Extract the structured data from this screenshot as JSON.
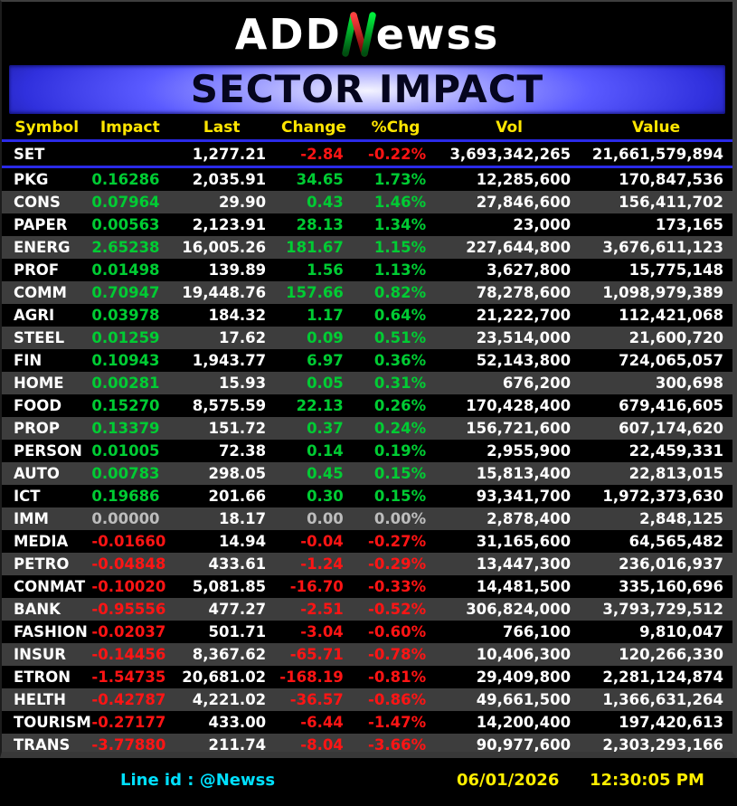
{
  "logo": {
    "text_left": "ADD",
    "text_right": "ewss",
    "n_icon": "green-red-letter-n"
  },
  "banner": {
    "title": "SECTOR IMPACT"
  },
  "table": {
    "columns": [
      "Symbol",
      "Impact",
      "Last",
      "Change",
      "%Chg",
      "Vol",
      "Value"
    ],
    "index_row": {
      "symbol": "SET",
      "impact": "",
      "last": "1,277.21",
      "change": "-2.84",
      "pct": "-0.22%",
      "vol": "3,693,342,265",
      "value": "21,661,579,894",
      "trend": "down"
    },
    "rows": [
      {
        "symbol": "PKG",
        "impact": "0.16286",
        "last": "2,035.91",
        "change": "34.65",
        "pct": "1.73%",
        "vol": "12,285,600",
        "value": "170,847,536",
        "trend": "up"
      },
      {
        "symbol": "CONS",
        "impact": "0.07964",
        "last": "29.90",
        "change": "0.43",
        "pct": "1.46%",
        "vol": "27,846,600",
        "value": "156,411,702",
        "trend": "up"
      },
      {
        "symbol": "PAPER",
        "impact": "0.00563",
        "last": "2,123.91",
        "change": "28.13",
        "pct": "1.34%",
        "vol": "23,000",
        "value": "173,165",
        "trend": "up"
      },
      {
        "symbol": "ENERG",
        "impact": "2.65238",
        "last": "16,005.26",
        "change": "181.67",
        "pct": "1.15%",
        "vol": "227,644,800",
        "value": "3,676,611,123",
        "trend": "up"
      },
      {
        "symbol": "PROF",
        "impact": "0.01498",
        "last": "139.89",
        "change": "1.56",
        "pct": "1.13%",
        "vol": "3,627,800",
        "value": "15,775,148",
        "trend": "up"
      },
      {
        "symbol": "COMM",
        "impact": "0.70947",
        "last": "19,448.76",
        "change": "157.66",
        "pct": "0.82%",
        "vol": "78,278,600",
        "value": "1,098,979,389",
        "trend": "up"
      },
      {
        "symbol": "AGRI",
        "impact": "0.03978",
        "last": "184.32",
        "change": "1.17",
        "pct": "0.64%",
        "vol": "21,222,700",
        "value": "112,421,068",
        "trend": "up"
      },
      {
        "symbol": "STEEL",
        "impact": "0.01259",
        "last": "17.62",
        "change": "0.09",
        "pct": "0.51%",
        "vol": "23,514,000",
        "value": "21,600,720",
        "trend": "up"
      },
      {
        "symbol": "FIN",
        "impact": "0.10943",
        "last": "1,943.77",
        "change": "6.97",
        "pct": "0.36%",
        "vol": "52,143,800",
        "value": "724,065,057",
        "trend": "up"
      },
      {
        "symbol": "HOME",
        "impact": "0.00281",
        "last": "15.93",
        "change": "0.05",
        "pct": "0.31%",
        "vol": "676,200",
        "value": "300,698",
        "trend": "up"
      },
      {
        "symbol": "FOOD",
        "impact": "0.15270",
        "last": "8,575.59",
        "change": "22.13",
        "pct": "0.26%",
        "vol": "170,428,400",
        "value": "679,416,605",
        "trend": "up"
      },
      {
        "symbol": "PROP",
        "impact": "0.13379",
        "last": "151.72",
        "change": "0.37",
        "pct": "0.24%",
        "vol": "156,721,600",
        "value": "607,174,620",
        "trend": "up"
      },
      {
        "symbol": "PERSON",
        "impact": "0.01005",
        "last": "72.38",
        "change": "0.14",
        "pct": "0.19%",
        "vol": "2,955,900",
        "value": "22,459,331",
        "trend": "up"
      },
      {
        "symbol": "AUTO",
        "impact": "0.00783",
        "last": "298.05",
        "change": "0.45",
        "pct": "0.15%",
        "vol": "15,813,400",
        "value": "22,813,015",
        "trend": "up"
      },
      {
        "symbol": "ICT",
        "impact": "0.19686",
        "last": "201.66",
        "change": "0.30",
        "pct": "0.15%",
        "vol": "93,341,700",
        "value": "1,972,373,630",
        "trend": "up"
      },
      {
        "symbol": "IMM",
        "impact": "0.00000",
        "last": "18.17",
        "change": "0.00",
        "pct": "0.00%",
        "vol": "2,878,400",
        "value": "2,848,125",
        "trend": "flat"
      },
      {
        "symbol": "MEDIA",
        "impact": "-0.01660",
        "last": "14.94",
        "change": "-0.04",
        "pct": "-0.27%",
        "vol": "31,165,600",
        "value": "64,565,482",
        "trend": "down"
      },
      {
        "symbol": "PETRO",
        "impact": "-0.04848",
        "last": "433.61",
        "change": "-1.24",
        "pct": "-0.29%",
        "vol": "13,447,300",
        "value": "236,016,937",
        "trend": "down"
      },
      {
        "symbol": "CONMAT",
        "impact": "-0.10020",
        "last": "5,081.85",
        "change": "-16.70",
        "pct": "-0.33%",
        "vol": "14,481,500",
        "value": "335,160,696",
        "trend": "down"
      },
      {
        "symbol": "BANK",
        "impact": "-0.95556",
        "last": "477.27",
        "change": "-2.51",
        "pct": "-0.52%",
        "vol": "306,824,000",
        "value": "3,793,729,512",
        "trend": "down"
      },
      {
        "symbol": "FASHION",
        "impact": "-0.02037",
        "last": "501.71",
        "change": "-3.04",
        "pct": "-0.60%",
        "vol": "766,100",
        "value": "9,810,047",
        "trend": "down"
      },
      {
        "symbol": "INSUR",
        "impact": "-0.14456",
        "last": "8,367.62",
        "change": "-65.71",
        "pct": "-0.78%",
        "vol": "10,406,300",
        "value": "120,266,330",
        "trend": "down"
      },
      {
        "symbol": "ETRON",
        "impact": "-1.54735",
        "last": "20,681.02",
        "change": "-168.19",
        "pct": "-0.81%",
        "vol": "29,409,800",
        "value": "2,281,124,874",
        "trend": "down"
      },
      {
        "symbol": "HELTH",
        "impact": "-0.42787",
        "last": "4,221.02",
        "change": "-36.57",
        "pct": "-0.86%",
        "vol": "49,661,500",
        "value": "1,366,631,264",
        "trend": "down"
      },
      {
        "symbol": "TOURISM",
        "impact": "-0.27177",
        "last": "433.00",
        "change": "-6.44",
        "pct": "-1.47%",
        "vol": "14,200,400",
        "value": "197,420,613",
        "trend": "down"
      },
      {
        "symbol": "TRANS",
        "impact": "-3.77880",
        "last": "211.74",
        "change": "-8.04",
        "pct": "-3.66%",
        "vol": "90,977,600",
        "value": "2,303,293,166",
        "trend": "down"
      }
    ]
  },
  "footer": {
    "line_id": "Line id  : @Newss",
    "date": "06/01/2026",
    "time": "12:30:05 PM"
  },
  "colors": {
    "up": "#00cc33",
    "down": "#ff1414",
    "flat": "#bdbdbd",
    "header_text": "#ffe600",
    "separator_blue": "#2a2ae8",
    "stripe": "#3d3d3d",
    "cyan": "#00e0ff",
    "footer_yellow": "#ffee00",
    "logo_green": "#00d030",
    "logo_red": "#e01010"
  }
}
